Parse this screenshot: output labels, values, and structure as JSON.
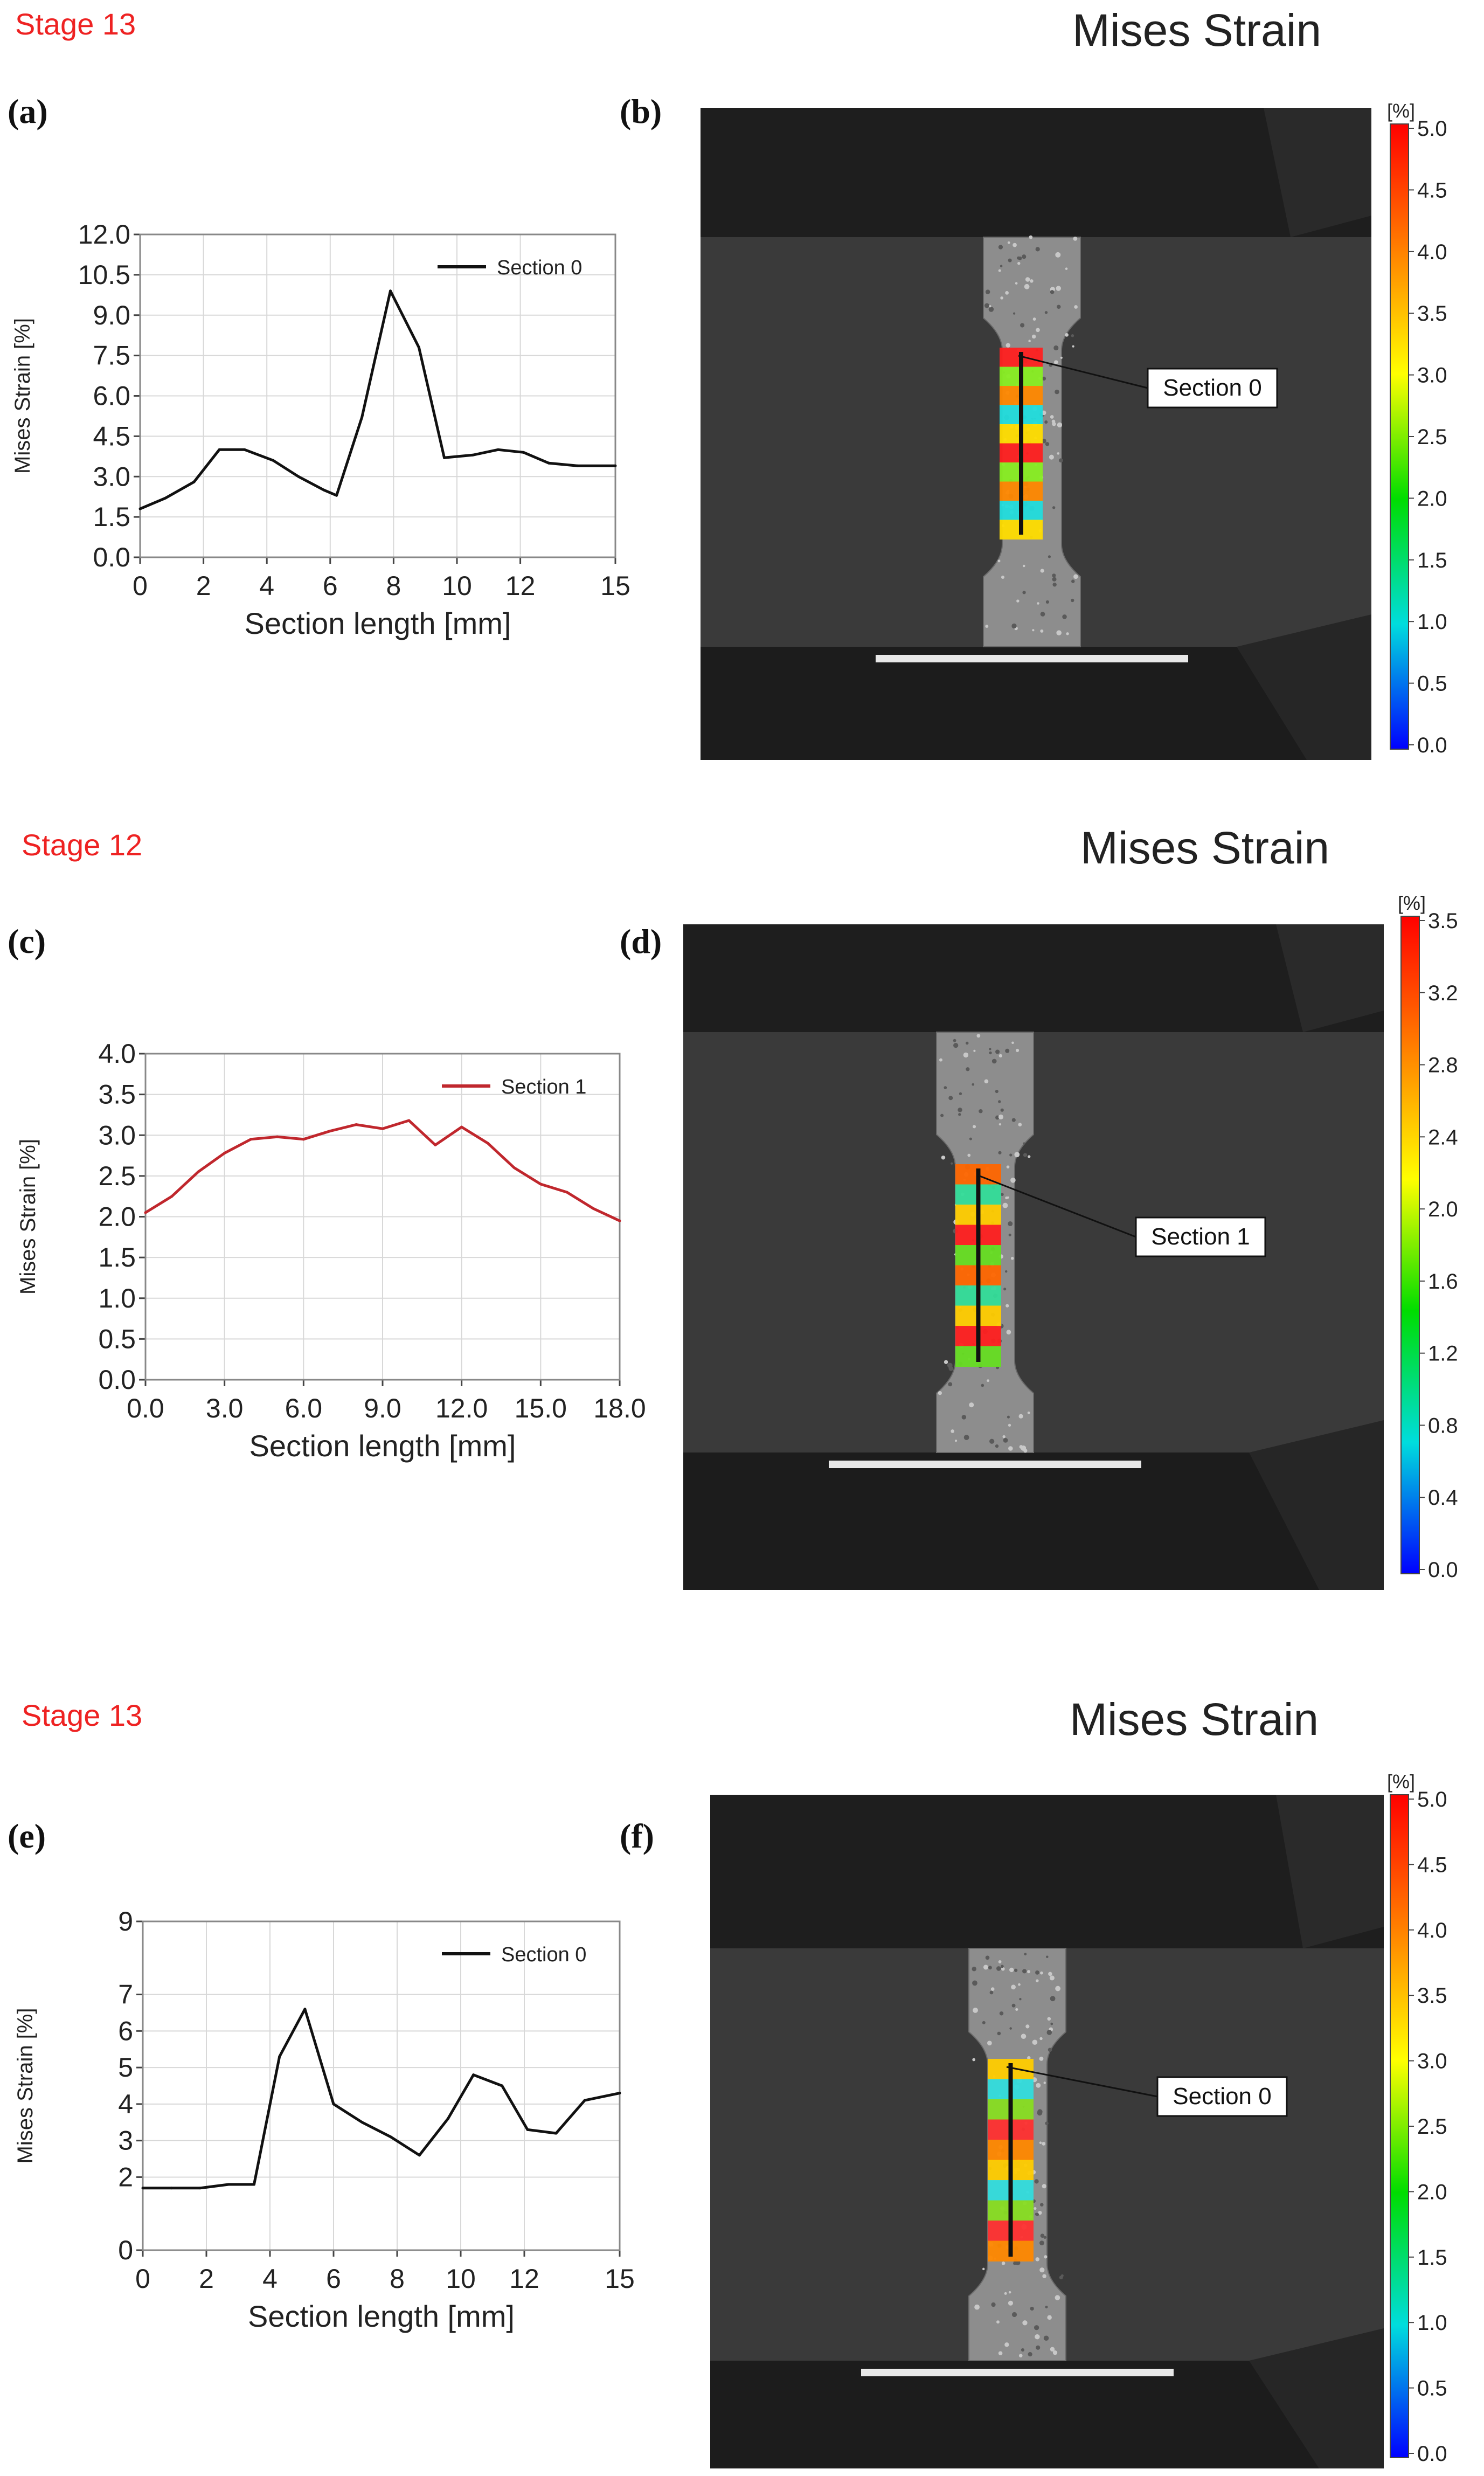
{
  "panels": [
    {
      "stage": "Stage 13",
      "title": "Mises Strain",
      "chart_label": "(a)",
      "image_label": "(b)",
      "image_section_label": "Section 0",
      "colorbar_unit": "[%]",
      "colorbar_ticks": [
        "5.0",
        "4.5",
        "4.0",
        "3.5",
        "3.0",
        "2.5",
        "2.0",
        "1.5",
        "1.0",
        "0.5",
        "0.0"
      ]
    },
    {
      "stage": "Stage 12",
      "title": "Mises Strain",
      "chart_label": "(c)",
      "image_label": "(d)",
      "image_section_label": "Section 1",
      "colorbar_unit": "[%]",
      "colorbar_ticks": [
        "3.5",
        "3.2",
        "2.8",
        "2.4",
        "2.0",
        "1.6",
        "1.2",
        "0.8",
        "0.4",
        "0.0"
      ]
    },
    {
      "stage": "Stage 13",
      "title": "Mises Strain",
      "chart_label": "(e)",
      "image_label": "(f)",
      "image_section_label": "Section 0",
      "colorbar_unit": "[%]",
      "colorbar_ticks": [
        "5.0",
        "4.5",
        "4.0",
        "3.5",
        "3.0",
        "2.5",
        "2.0",
        "1.5",
        "1.0",
        "0.5",
        "0.0"
      ]
    }
  ],
  "colors": {
    "stage_label": "#ee2222",
    "line_section0": "#111111",
    "line_section1": "#c0272d",
    "grid": "#d8d8d8",
    "colormap": [
      "#ff0000",
      "#ff7f00",
      "#ffff00",
      "#00dd00",
      "#00dddd",
      "#0000ff"
    ]
  },
  "chart_data": [
    {
      "type": "line",
      "xlabel": "Section length [mm]",
      "ylabel": "Mises Strain [%]",
      "xlim": [
        0,
        15
      ],
      "ylim": [
        0,
        12
      ],
      "xticks": [
        "0",
        "2",
        "4",
        "6",
        "8",
        "10",
        "12",
        "15"
      ],
      "xtick_values": [
        0,
        2,
        4,
        6,
        8,
        10,
        12,
        15
      ],
      "yticks": [
        "0.0",
        "1.5",
        "3.0",
        "4.5",
        "6.0",
        "7.5",
        "9.0",
        "10.5",
        "12.0"
      ],
      "ytick_values": [
        0,
        1.5,
        3,
        4.5,
        6,
        7.5,
        9,
        10.5,
        12
      ],
      "legend": "top-right",
      "grid": true,
      "series": [
        {
          "name": "Section 0",
          "color": "#111111",
          "x": [
            0,
            0.8,
            1.7,
            2.5,
            3.3,
            4.2,
            5,
            5.8,
            6.2,
            7,
            7.9,
            8.8,
            9.6,
            10.5,
            11.3,
            12.1,
            12.9,
            13.8,
            15
          ],
          "y": [
            1.8,
            2.2,
            2.8,
            4.0,
            4.0,
            3.6,
            3.0,
            2.5,
            2.3,
            5.2,
            9.9,
            7.8,
            3.7,
            3.8,
            4.0,
            3.9,
            3.5,
            3.4,
            3.4
          ]
        }
      ]
    },
    {
      "type": "line",
      "xlabel": "Section length [mm]",
      "ylabel": "Mises Strain [%]",
      "xlim": [
        0,
        18
      ],
      "ylim": [
        0,
        4
      ],
      "xticks": [
        "0.0",
        "3.0",
        "6.0",
        "9.0",
        "12.0",
        "15.0",
        "18.0"
      ],
      "xtick_values": [
        0,
        3,
        6,
        9,
        12,
        15,
        18
      ],
      "yticks": [
        "0.0",
        "0.5",
        "1.0",
        "1.5",
        "2.0",
        "2.5",
        "3.0",
        "3.5",
        "4.0"
      ],
      "ytick_values": [
        0,
        0.5,
        1,
        1.5,
        2,
        2.5,
        3,
        3.5,
        4
      ],
      "legend": "top-right",
      "grid": true,
      "series": [
        {
          "name": "Section 1",
          "color": "#c0272d",
          "x": [
            0,
            1,
            2,
            3,
            4,
            5,
            6,
            7,
            8,
            9,
            10,
            11,
            12,
            13,
            14,
            15,
            16,
            17,
            18
          ],
          "y": [
            2.05,
            2.25,
            2.55,
            2.78,
            2.95,
            2.98,
            2.95,
            3.05,
            3.13,
            3.08,
            3.18,
            2.88,
            3.1,
            2.9,
            2.6,
            2.4,
            2.3,
            2.1,
            1.95
          ]
        }
      ]
    },
    {
      "type": "line",
      "xlabel": "Section length [mm]",
      "ylabel": "Mises Strain [%]",
      "xlim": [
        0,
        15
      ],
      "ylim": [
        0,
        9
      ],
      "xticks": [
        "0",
        "2",
        "4",
        "6",
        "8",
        "10",
        "12",
        "15"
      ],
      "xtick_values": [
        0,
        2,
        4,
        6,
        8,
        10,
        12,
        15
      ],
      "yticks": [
        "0",
        "2",
        "3",
        "4",
        "5",
        "6",
        "7",
        "9"
      ],
      "ytick_values": [
        0,
        2,
        3,
        4,
        5,
        6,
        7,
        9
      ],
      "legend": "top-right",
      "grid": true,
      "series": [
        {
          "name": "Section 0",
          "color": "#111111",
          "x": [
            0,
            0.9,
            1.8,
            2.7,
            3.5,
            4.3,
            5.1,
            6,
            6.9,
            7.8,
            8.7,
            9.6,
            10.4,
            11.3,
            12.1,
            13,
            13.9,
            15
          ],
          "y": [
            1.7,
            1.7,
            1.7,
            1.8,
            1.8,
            5.3,
            6.6,
            4.0,
            3.5,
            3.1,
            2.6,
            3.6,
            4.8,
            4.5,
            3.3,
            3.2,
            4.1,
            4.3
          ]
        }
      ]
    }
  ]
}
